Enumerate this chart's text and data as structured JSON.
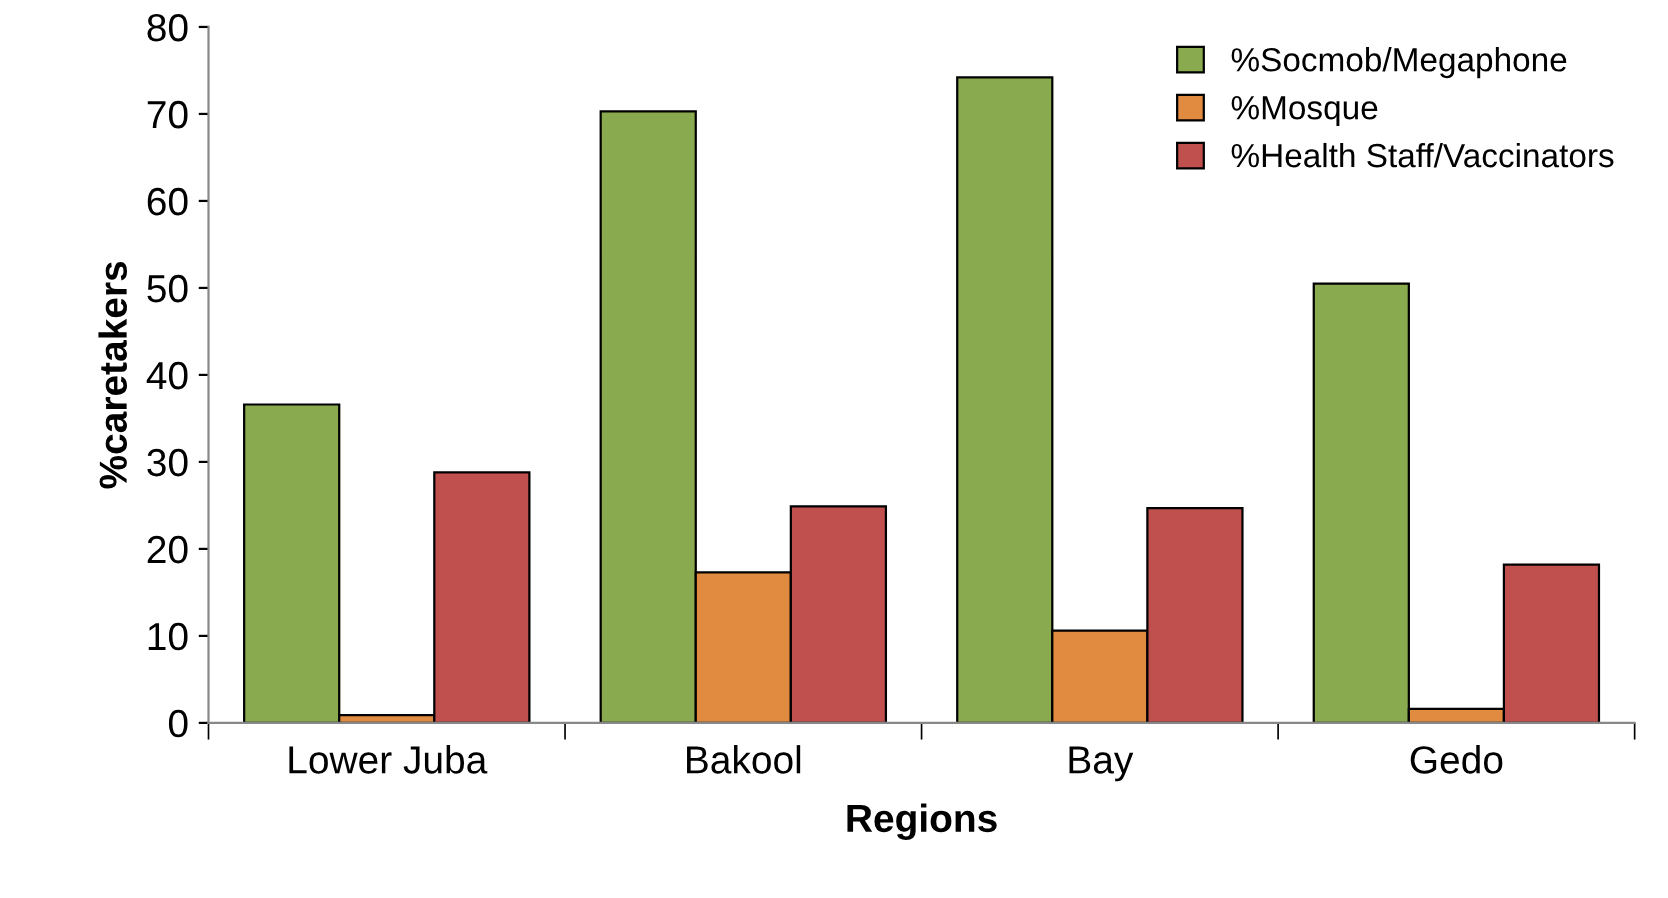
{
  "chart_data": {
    "type": "bar",
    "xlabel": "Regions",
    "ylabel": "%caretakers",
    "categories": [
      "Lower Juba",
      "Bakool",
      "Bay",
      "Gedo"
    ],
    "series": [
      {
        "name": "%Socmob/Megaphone",
        "color": "#8aaa4f",
        "values": [
          36.6,
          70.3,
          74.2,
          50.5
        ]
      },
      {
        "name": "%Mosque",
        "color": "#e08b3f",
        "values": [
          0.9,
          17.3,
          10.6,
          1.6
        ]
      },
      {
        "name": "%Health Staff/Vaccinators",
        "color": "#c0504d",
        "values": [
          28.8,
          24.9,
          24.7,
          18.2
        ]
      }
    ],
    "ylim": [
      0,
      80
    ],
    "yticks": [
      0,
      10,
      20,
      30,
      40,
      50,
      60,
      70,
      80
    ],
    "grid": false,
    "legend": "top right"
  }
}
